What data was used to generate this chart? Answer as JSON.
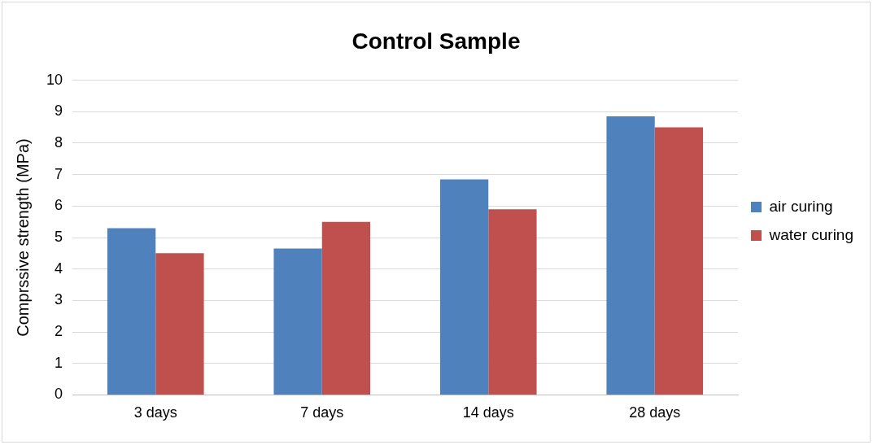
{
  "chart_data": {
    "type": "bar",
    "title": "Control Sample",
    "ylabel": "Comprssive strength (MPa)",
    "categories": [
      "3 days",
      "7 days",
      "14 days",
      "28 days"
    ],
    "series": [
      {
        "name": "air curing",
        "color": "#4f81bd",
        "values": [
          5.3,
          4.65,
          6.85,
          8.85
        ]
      },
      {
        "name": "water curing",
        "color": "#c0504d",
        "values": [
          4.5,
          5.5,
          5.9,
          8.5
        ]
      }
    ],
    "ylim": [
      0,
      10
    ],
    "yticks": [
      0,
      1,
      2,
      3,
      4,
      5,
      6,
      7,
      8,
      9,
      10
    ],
    "grid": "y",
    "legend": "right"
  }
}
